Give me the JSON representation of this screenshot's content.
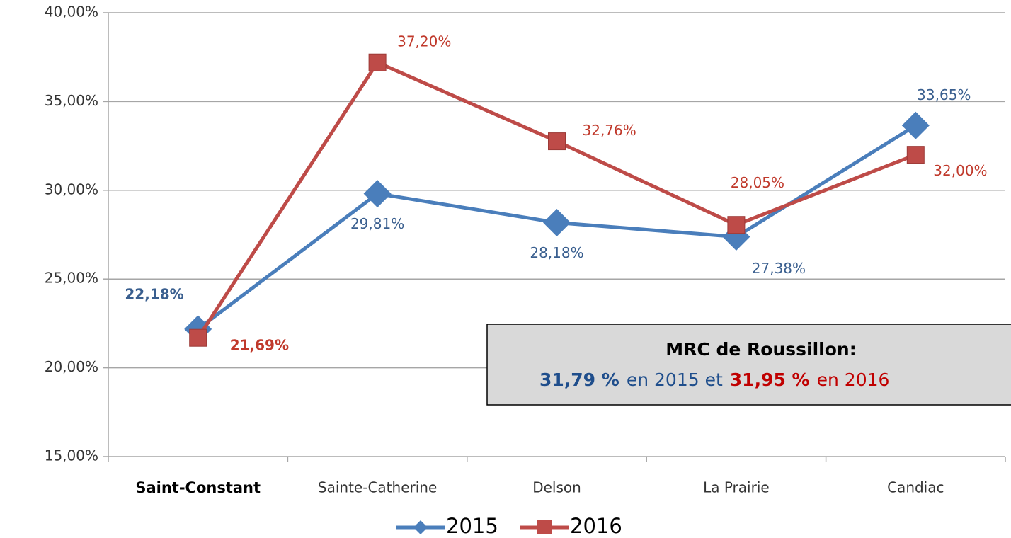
{
  "chart_data": {
    "type": "line",
    "categories": [
      "Saint-Constant",
      "Sainte-Catherine",
      "Delson",
      "La Prairie",
      "Candiac"
    ],
    "series": [
      {
        "name": "2015",
        "color": "#4a7ebb",
        "marker": "diamond",
        "values": [
          22.18,
          29.81,
          28.18,
          27.38,
          33.65
        ],
        "value_labels": [
          "22,18%",
          "29,81%",
          "28,18%",
          "27,38%",
          "33,65%"
        ]
      },
      {
        "name": "2016",
        "color": "#be4b48",
        "marker": "square",
        "values": [
          21.69,
          37.2,
          32.76,
          28.05,
          32.0
        ],
        "value_labels": [
          "21,69%",
          "37,20%",
          "32,76%",
          "28,05%",
          "32,00%"
        ]
      }
    ],
    "ylim": [
      15,
      40
    ],
    "yticks": [
      {
        "value": 15,
        "label": "15,00%"
      },
      {
        "value": 20,
        "label": "20,00%"
      },
      {
        "value": 25,
        "label": "25,00%"
      },
      {
        "value": 30,
        "label": "30,00%"
      },
      {
        "value": 35,
        "label": "35,00%"
      },
      {
        "value": 40,
        "label": "40,00%"
      }
    ],
    "grid": true,
    "legend": "bottom",
    "annotation": {
      "title": "MRC de Roussillon:",
      "parts": [
        "31,79 %",
        "en 2015 et",
        "31,95 %",
        "en 2016"
      ]
    }
  }
}
